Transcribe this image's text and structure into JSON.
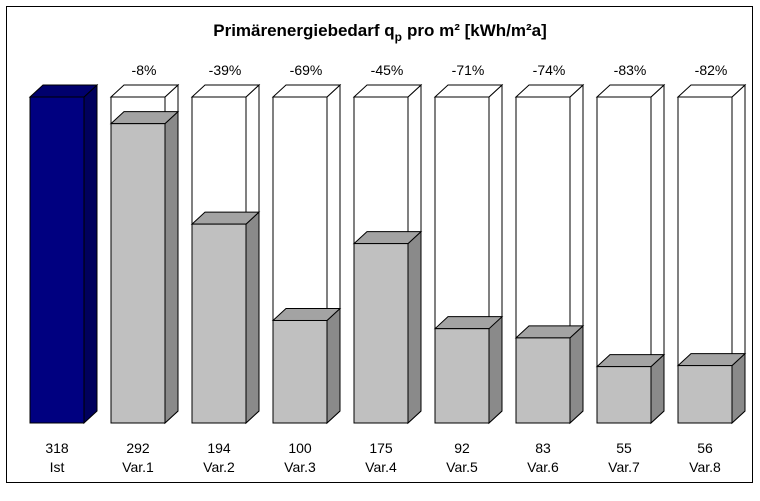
{
  "chart_data": {
    "type": "bar3d",
    "title": "Primärenergiebedarf q",
    "title_subscript": "p",
    "title_rest": "pro m²  [kWh/m²a]",
    "categories": [
      "Ist",
      "Var.1",
      "Var.2",
      "Var.3",
      "Var.4",
      "Var.5",
      "Var.6",
      "Var.7",
      "Var.8"
    ],
    "values": [
      318,
      292,
      194,
      100,
      175,
      92,
      83,
      55,
      56
    ],
    "changes": [
      null,
      -8,
      -39,
      -69,
      -45,
      -71,
      -74,
      -83,
      -82
    ],
    "change_labels": [
      null,
      "-8%",
      "-39%",
      "-69%",
      "-45%",
      "-71%",
      "-74%",
      "-83%",
      "-82%"
    ],
    "colors": {
      "reference": "#000080",
      "variant": "#c0c0c0"
    }
  }
}
